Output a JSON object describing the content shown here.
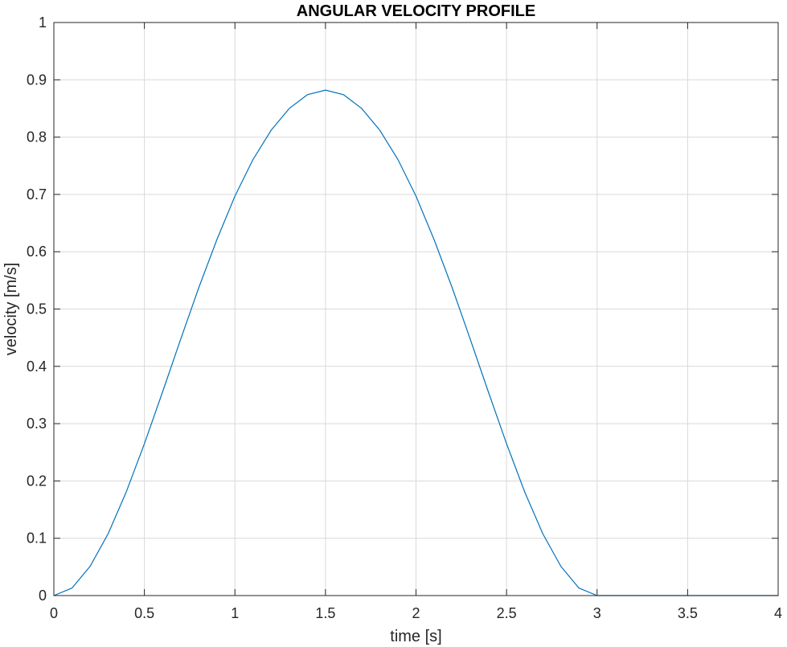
{
  "chart_data": {
    "type": "line",
    "title": "ANGULAR VELOCITY PROFILE",
    "xlabel": "time [s]",
    "ylabel": "velocity [m/s]",
    "xlim": [
      0,
      4
    ],
    "ylim": [
      0,
      1
    ],
    "xticks": [
      0,
      0.5,
      1,
      1.5,
      2,
      2.5,
      3,
      3.5,
      4
    ],
    "yticks": [
      0,
      0.1,
      0.2,
      0.3,
      0.4,
      0.5,
      0.6,
      0.7,
      0.8,
      0.9,
      1
    ],
    "xtick_labels": [
      "0",
      "0.5",
      "1",
      "1.5",
      "2",
      "2.5",
      "3",
      "3.5",
      "4"
    ],
    "ytick_labels": [
      "0",
      "0.1",
      "0.2",
      "0.3",
      "0.4",
      "0.5",
      "0.6",
      "0.7",
      "0.8",
      "0.9",
      "1"
    ],
    "grid": true,
    "series": [
      {
        "color": "#0072bd",
        "x": [
          0,
          0.1,
          0.2,
          0.3,
          0.4,
          0.5,
          0.6,
          0.7,
          0.8,
          0.9,
          1.0,
          1.1,
          1.2,
          1.3,
          1.4,
          1.5,
          1.6,
          1.7,
          1.8,
          1.9,
          2.0,
          2.1,
          2.2,
          2.3,
          2.4,
          2.5,
          2.6,
          2.7,
          2.8,
          2.9,
          3.0,
          3.1,
          3.2,
          3.3,
          3.4,
          3.5,
          3.6,
          3.7,
          3.8,
          3.9,
          4.0
        ],
        "y": [
          0.0,
          0.013,
          0.051,
          0.108,
          0.181,
          0.265,
          0.355,
          0.447,
          0.537,
          0.621,
          0.697,
          0.761,
          0.812,
          0.85,
          0.874,
          0.882,
          0.874,
          0.85,
          0.812,
          0.761,
          0.697,
          0.621,
          0.537,
          0.447,
          0.355,
          0.265,
          0.181,
          0.108,
          0.051,
          0.013,
          0.0,
          0.0,
          0.0,
          0.0,
          0.0,
          0.0,
          0.0,
          0.0,
          0.0,
          0.0,
          0.0
        ]
      }
    ],
    "axis_color": "#262626",
    "grid_color": "#d9d9d9"
  }
}
